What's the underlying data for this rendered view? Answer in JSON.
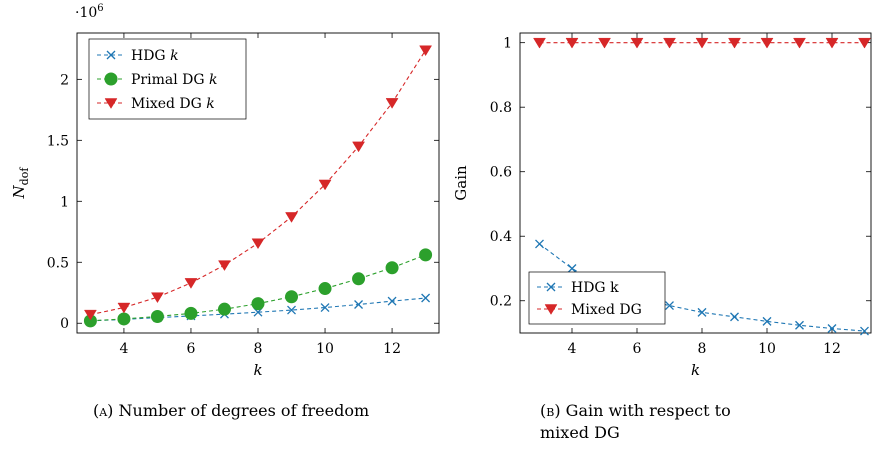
{
  "colors": {
    "hdg": "#1f77b4",
    "primal": "#2ca02c",
    "mixed": "#d62728"
  },
  "chart_data": [
    {
      "type": "line",
      "x": [
        3,
        4,
        5,
        6,
        7,
        8,
        9,
        10,
        11,
        12,
        13
      ],
      "xlabel": "k",
      "ylabel": "N",
      "ylabel_sub": "dof",
      "y_scale_label": "·10",
      "y_scale_exp": "6",
      "xlim": [
        2.6,
        13.4
      ],
      "ylim": [
        -0.08,
        2.38
      ],
      "xticks": [
        4,
        6,
        8,
        10,
        12
      ],
      "yticks": [
        0,
        0.5,
        1,
        1.5,
        2
      ],
      "legend_position": "top-left",
      "grid": false,
      "series": [
        {
          "name": "HDG k",
          "label_text": "HDG ",
          "label_italic": "k",
          "marker": "x",
          "color": "#1f77b4",
          "values": [
            0.0195,
            0.0316,
            0.0461,
            0.0598,
            0.0746,
            0.0906,
            0.1079,
            0.1289,
            0.1538,
            0.1812,
            0.2069
          ]
        },
        {
          "name": "Primal DG k",
          "label_text": "Primal DG ",
          "label_italic": "k",
          "marker": "circle",
          "color": "#2ca02c",
          "values": [
            0.0196,
            0.0353,
            0.0551,
            0.0809,
            0.1153,
            0.1608,
            0.2173,
            0.2844,
            0.3645,
            0.4548,
            0.5606
          ]
        },
        {
          "name": "Mixed DG k",
          "label_text": "Mixed DG ",
          "label_italic": "k",
          "marker": "triangle-down",
          "color": "#d62728",
          "values": [
            0.0707,
            0.1287,
            0.2137,
            0.3306,
            0.4767,
            0.6561,
            0.8717,
            1.1379,
            1.4502,
            1.8068,
            2.2388
          ]
        }
      ]
    },
    {
      "type": "line",
      "x": [
        3,
        4,
        5,
        6,
        7,
        8,
        9,
        10,
        11,
        12,
        13
      ],
      "xlabel": "k",
      "ylabel": "Gain",
      "xlim": [
        2.4,
        13.2
      ],
      "ylim": [
        0.1,
        1.03
      ],
      "xticks": [
        4,
        6,
        8,
        10,
        12
      ],
      "yticks": [
        0.2,
        0.4,
        0.6,
        0.8,
        1
      ],
      "ytick_labels": [
        "0.2",
        "0.4",
        "0.6",
        "0.8",
        "1"
      ],
      "legend_position": "bottom-left",
      "grid": false,
      "series": [
        {
          "name": "HDG k",
          "label_text": "HDG k",
          "label_italic": "",
          "marker": "x",
          "color": "#1f77b4",
          "values": [
            0.376,
            0.3,
            0.243,
            0.207,
            0.185,
            0.164,
            0.15,
            0.136,
            0.124,
            0.114,
            0.106
          ]
        },
        {
          "name": "Mixed DG",
          "label_text": "Mixed DG",
          "label_italic": "",
          "marker": "triangle-down",
          "color": "#d62728",
          "values": [
            1,
            1,
            1,
            1,
            1,
            1,
            1,
            1,
            1,
            1,
            1
          ]
        }
      ]
    }
  ],
  "captions": [
    {
      "tag": "(a)",
      "text": "Number of degrees of freedom"
    },
    {
      "tag": "(b)",
      "line1": "Gain with respect to",
      "line2": "mixed DG"
    }
  ]
}
